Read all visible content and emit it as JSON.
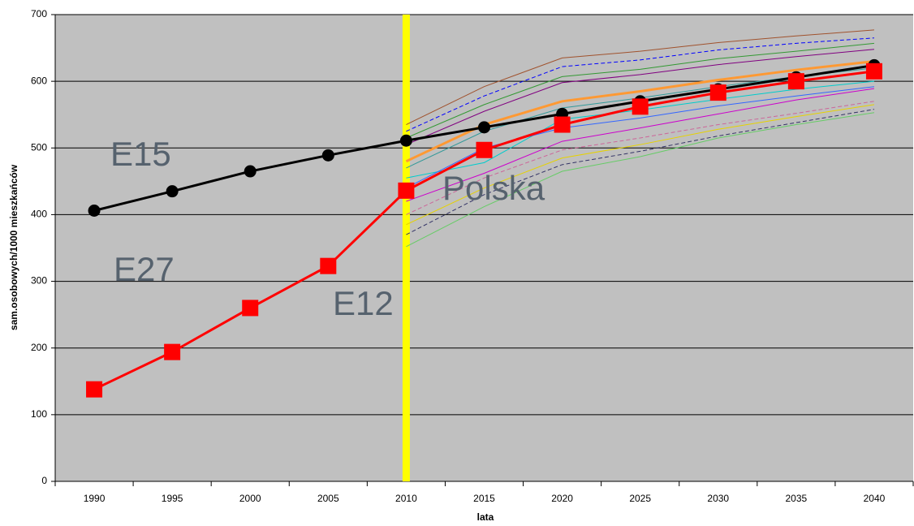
{
  "chart_data": {
    "type": "line",
    "xlabel": "lata",
    "ylabel": "sam.osobowych/1000 mieszkańców",
    "categories": [
      "1990",
      "1995",
      "2000",
      "2005",
      "2010",
      "2015",
      "2020",
      "2025",
      "2030",
      "2035",
      "2040"
    ],
    "ylim": [
      0,
      700
    ],
    "yticks": [
      0,
      100,
      200,
      300,
      400,
      500,
      600,
      700
    ],
    "grid": true,
    "highlight_category": "2010",
    "highlight_color": "#ffff00",
    "annotations": [
      "E15",
      "E27",
      "E12",
      "Polska"
    ],
    "series": [
      {
        "color": "#a0522d",
        "values": [
          null,
          null,
          null,
          null,
          535,
          592,
          635,
          645,
          658,
          668,
          677
        ]
      },
      {
        "color": "#0000ff",
        "dash": true,
        "values": [
          null,
          null,
          null,
          null,
          525,
          578,
          622,
          632,
          647,
          657,
          665
        ]
      },
      {
        "color": "#339933",
        "values": [
          null,
          null,
          null,
          null,
          515,
          565,
          607,
          618,
          634,
          645,
          657
        ]
      },
      {
        "color": "#800080",
        "values": [
          null,
          null,
          null,
          null,
          505,
          555,
          598,
          610,
          625,
          637,
          648
        ]
      },
      {
        "color": "#ff9933",
        "width": 3,
        "values": [
          null,
          null,
          null,
          null,
          480,
          535,
          570,
          585,
          602,
          617,
          630
        ]
      },
      {
        "color": "#339999",
        "values": [
          null,
          null,
          null,
          null,
          470,
          525,
          560,
          575,
          592,
          607,
          620
        ]
      },
      {
        "color": "#00cccc",
        "values": [
          null,
          null,
          null,
          null,
          455,
          478,
          543,
          557,
          573,
          588,
          600
        ]
      },
      {
        "color": "#3366ff",
        "values": [
          null,
          null,
          null,
          null,
          440,
          500,
          530,
          545,
          563,
          578,
          592
        ]
      },
      {
        "color": "#cc00cc",
        "values": [
          null,
          null,
          null,
          null,
          420,
          462,
          510,
          530,
          551,
          572,
          589
        ]
      },
      {
        "color": "#cc6699",
        "dash": true,
        "values": [
          null,
          null,
          null,
          null,
          400,
          455,
          497,
          515,
          535,
          552,
          570
        ]
      },
      {
        "color": "#e6d200",
        "values": [
          null,
          null,
          null,
          null,
          385,
          440,
          485,
          505,
          528,
          547,
          565
        ]
      },
      {
        "color": "#333366",
        "dash": true,
        "values": [
          null,
          null,
          null,
          null,
          370,
          430,
          475,
          495,
          518,
          538,
          558
        ]
      },
      {
        "color": "#66cc66",
        "values": [
          null,
          null,
          null,
          null,
          352,
          412,
          465,
          487,
          515,
          535,
          553
        ]
      },
      {
        "color": "#000000",
        "width": 3,
        "marker": "circle",
        "values": [
          406,
          435,
          465,
          489,
          511,
          531,
          551,
          570,
          588,
          606,
          624
        ]
      },
      {
        "color": "#ff0000",
        "width": 3,
        "marker": "square",
        "values": [
          138,
          194,
          260,
          323,
          436,
          497,
          535,
          562,
          583,
          600,
          615
        ]
      }
    ]
  }
}
